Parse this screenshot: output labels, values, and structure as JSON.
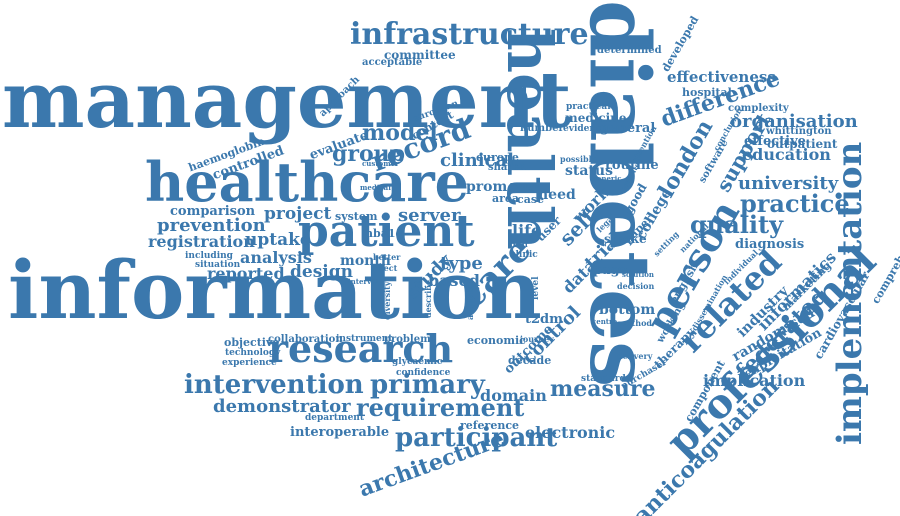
{
  "accent_color": "#3b78ad",
  "background_color": "#ffffff",
  "words": [
    {
      "key": "management",
      "text": "management"
    },
    {
      "key": "information",
      "text": "information"
    },
    {
      "key": "healthcare",
      "text": "healthcare"
    },
    {
      "key": "diabetes",
      "text": "diabetes"
    },
    {
      "key": "health",
      "text": "health"
    },
    {
      "key": "patient",
      "text": "patient"
    },
    {
      "key": "research",
      "text": "research"
    },
    {
      "key": "infrastructure",
      "text": "infrastructure"
    },
    {
      "key": "professional",
      "text": "professional"
    },
    {
      "key": "implementation",
      "text": "implementation"
    },
    {
      "key": "intervention",
      "text": "intervention"
    },
    {
      "key": "primary",
      "text": "primary"
    },
    {
      "key": "requirement",
      "text": "requirement"
    },
    {
      "key": "participant",
      "text": "participant"
    },
    {
      "key": "architecture",
      "text": "architecture"
    },
    {
      "key": "person",
      "text": "person"
    },
    {
      "key": "record",
      "text": "record"
    },
    {
      "key": "care",
      "text": "care"
    },
    {
      "key": "practice",
      "text": "practice"
    },
    {
      "key": "quality",
      "text": "quality"
    },
    {
      "key": "difference",
      "text": "difference"
    },
    {
      "key": "london",
      "text": "london"
    },
    {
      "key": "group",
      "text": "group"
    },
    {
      "key": "model",
      "text": "model"
    },
    {
      "key": "related",
      "text": "related"
    },
    {
      "key": "organisation",
      "text": "organisation"
    },
    {
      "key": "effectiveness",
      "text": "effectiveness"
    },
    {
      "key": "support",
      "text": "support"
    },
    {
      "key": "education",
      "text": "education"
    },
    {
      "key": "university",
      "text": "university"
    },
    {
      "key": "federated",
      "text": "federated"
    },
    {
      "key": "anticoagulation",
      "text": "anticoagulation"
    },
    {
      "key": "measure",
      "text": "measure"
    },
    {
      "key": "demonstrator",
      "text": "demonstrator"
    },
    {
      "key": "electronic",
      "text": "electronic"
    },
    {
      "key": "domain",
      "text": "domain"
    },
    {
      "key": "clinical",
      "text": "clinical"
    },
    {
      "key": "self",
      "text": "self"
    },
    {
      "key": "work",
      "text": "work"
    },
    {
      "key": "server",
      "text": "server"
    },
    {
      "key": "project",
      "text": "project"
    },
    {
      "key": "prevention",
      "text": "prevention"
    },
    {
      "key": "registration",
      "text": "registration"
    },
    {
      "key": "uptake",
      "text": "uptake"
    },
    {
      "key": "reported",
      "text": "reported"
    },
    {
      "key": "design",
      "text": "design"
    },
    {
      "key": "analysis",
      "text": "analysis"
    },
    {
      "key": "comparison",
      "text": "comparison"
    },
    {
      "key": "implication",
      "text": "implication"
    },
    {
      "key": "informatics",
      "text": "informatics"
    },
    {
      "key": "industry",
      "text": "industry"
    },
    {
      "key": "randomised",
      "text": "randomised"
    },
    {
      "key": "exploitation",
      "text": "exploitation"
    },
    {
      "key": "cardiovascular",
      "text": "cardiovascular"
    },
    {
      "key": "comprehensive",
      "text": "comprehensive"
    },
    {
      "key": "diagnosis",
      "text": "diagnosis"
    },
    {
      "key": "effective",
      "text": "effective"
    },
    {
      "key": "outpatient",
      "text": "outpatient"
    },
    {
      "key": "whittington",
      "text": "whittington"
    },
    {
      "key": "complexity",
      "text": "complexity"
    },
    {
      "key": "hospital",
      "text": "hospital"
    },
    {
      "key": "developed",
      "text": "developed"
    },
    {
      "key": "determined",
      "text": "determined"
    },
    {
      "key": "committee",
      "text": "committee"
    },
    {
      "key": "acceptable",
      "text": "acceptable"
    },
    {
      "key": "evaluate",
      "text": "evaluate"
    },
    {
      "key": "controlled",
      "text": "controlled"
    },
    {
      "key": "haemoglobin",
      "text": "haemoglobin"
    },
    {
      "key": "approach",
      "text": "approach"
    },
    {
      "key": "context",
      "text": "context"
    },
    {
      "key": "european",
      "text": "european"
    },
    {
      "key": "europe",
      "text": "europe"
    },
    {
      "key": "shared",
      "text": "shared"
    },
    {
      "key": "number",
      "text": "number"
    },
    {
      "key": "evidence",
      "text": "evidence"
    },
    {
      "key": "medicine",
      "text": "medicine"
    },
    {
      "key": "general",
      "text": "general"
    },
    {
      "key": "practical",
      "text": "practical"
    },
    {
      "key": "routine",
      "text": "routine"
    },
    {
      "key": "status",
      "text": "status"
    },
    {
      "key": "prom",
      "text": "prom"
    },
    {
      "key": "area",
      "text": "area"
    },
    {
      "key": "case",
      "text": "case"
    },
    {
      "key": "need",
      "text": "need"
    },
    {
      "key": "range",
      "text": "range"
    },
    {
      "key": "type",
      "text": "type"
    },
    {
      "key": "study",
      "text": "study"
    },
    {
      "key": "based",
      "text": "based"
    },
    {
      "key": "month",
      "text": "month"
    },
    {
      "key": "hba1c",
      "text": "hba1c"
    },
    {
      "key": "system",
      "text": "system"
    },
    {
      "key": "life",
      "text": "life"
    },
    {
      "key": "user",
      "text": "user"
    },
    {
      "key": "trial",
      "text": "trial"
    },
    {
      "key": "data",
      "text": "data"
    },
    {
      "key": "stroke",
      "text": "stroke"
    },
    {
      "key": "page",
      "text": "page"
    },
    {
      "key": "bottom",
      "text": "bottom"
    },
    {
      "key": "control",
      "text": "control"
    },
    {
      "key": "outcome",
      "text": "outcome"
    },
    {
      "key": "t2dm",
      "text": "t2dm"
    },
    {
      "key": "decade",
      "text": "decade"
    },
    {
      "key": "economic",
      "text": "economic"
    },
    {
      "key": "journey",
      "text": "journey"
    },
    {
      "key": "glycaemic",
      "text": "glycaemic"
    },
    {
      "key": "confidence",
      "text": "confidence"
    },
    {
      "key": "department",
      "text": "department"
    },
    {
      "key": "reference",
      "text": "reference"
    },
    {
      "key": "interoperable",
      "text": "interoperable"
    },
    {
      "key": "objective",
      "text": "objective"
    },
    {
      "key": "collaboration",
      "text": "collaboration"
    },
    {
      "key": "instrument",
      "text": "instrument"
    },
    {
      "key": "problem",
      "text": "problem"
    },
    {
      "key": "technology",
      "text": "technology"
    },
    {
      "key": "experience",
      "text": "experience"
    },
    {
      "key": "including",
      "text": "including"
    },
    {
      "key": "situation",
      "text": "situation"
    },
    {
      "key": "college",
      "text": "college"
    },
    {
      "key": "english",
      "text": "english"
    },
    {
      "key": "paper",
      "text": "paper"
    },
    {
      "key": "good",
      "text": "good"
    },
    {
      "key": "software",
      "text": "software"
    },
    {
      "key": "working",
      "text": "working"
    },
    {
      "key": "marketing",
      "text": "marketing"
    },
    {
      "key": "therapy",
      "text": "therapy"
    },
    {
      "key": "component",
      "text": "component"
    },
    {
      "key": "purchaser",
      "text": "purchaser"
    },
    {
      "key": "standard",
      "text": "standard"
    },
    {
      "key": "delivery",
      "text": "delivery"
    },
    {
      "key": "decision",
      "text": "decision"
    },
    {
      "key": "method",
      "text": "method"
    },
    {
      "key": "better",
      "text": "better"
    },
    {
      "key": "effect",
      "text": "effect"
    },
    {
      "key": "medical",
      "text": "medical"
    },
    {
      "key": "customer",
      "text": "customer"
    },
    {
      "key": "possible",
      "text": "possible"
    },
    {
      "key": "generic",
      "text": "generic"
    },
    {
      "key": "attention",
      "text": "attention"
    },
    {
      "key": "conclusion",
      "text": "conclusion"
    },
    {
      "key": "national",
      "text": "national"
    },
    {
      "key": "individual",
      "text": "individual"
    },
    {
      "key": "setting",
      "text": "setting"
    },
    {
      "key": "legal",
      "text": "legal"
    },
    {
      "key": "solution",
      "text": "solution"
    },
    {
      "key": "dissemination",
      "text": "dissemination"
    },
    {
      "key": "interval",
      "text": "interval"
    },
    {
      "key": "diversity",
      "text": "diversity"
    },
    {
      "key": "available",
      "text": "available"
    },
    {
      "key": "describe",
      "text": "describe"
    },
    {
      "key": "clinic",
      "text": "clinic"
    },
    {
      "key": "oral",
      "text": "oral"
    },
    {
      "key": "help",
      "text": "help"
    },
    {
      "key": "level",
      "text": "level"
    },
    {
      "key": "centre",
      "text": "centre"
    },
    {
      "key": "website",
      "text": "website"
    }
  ]
}
